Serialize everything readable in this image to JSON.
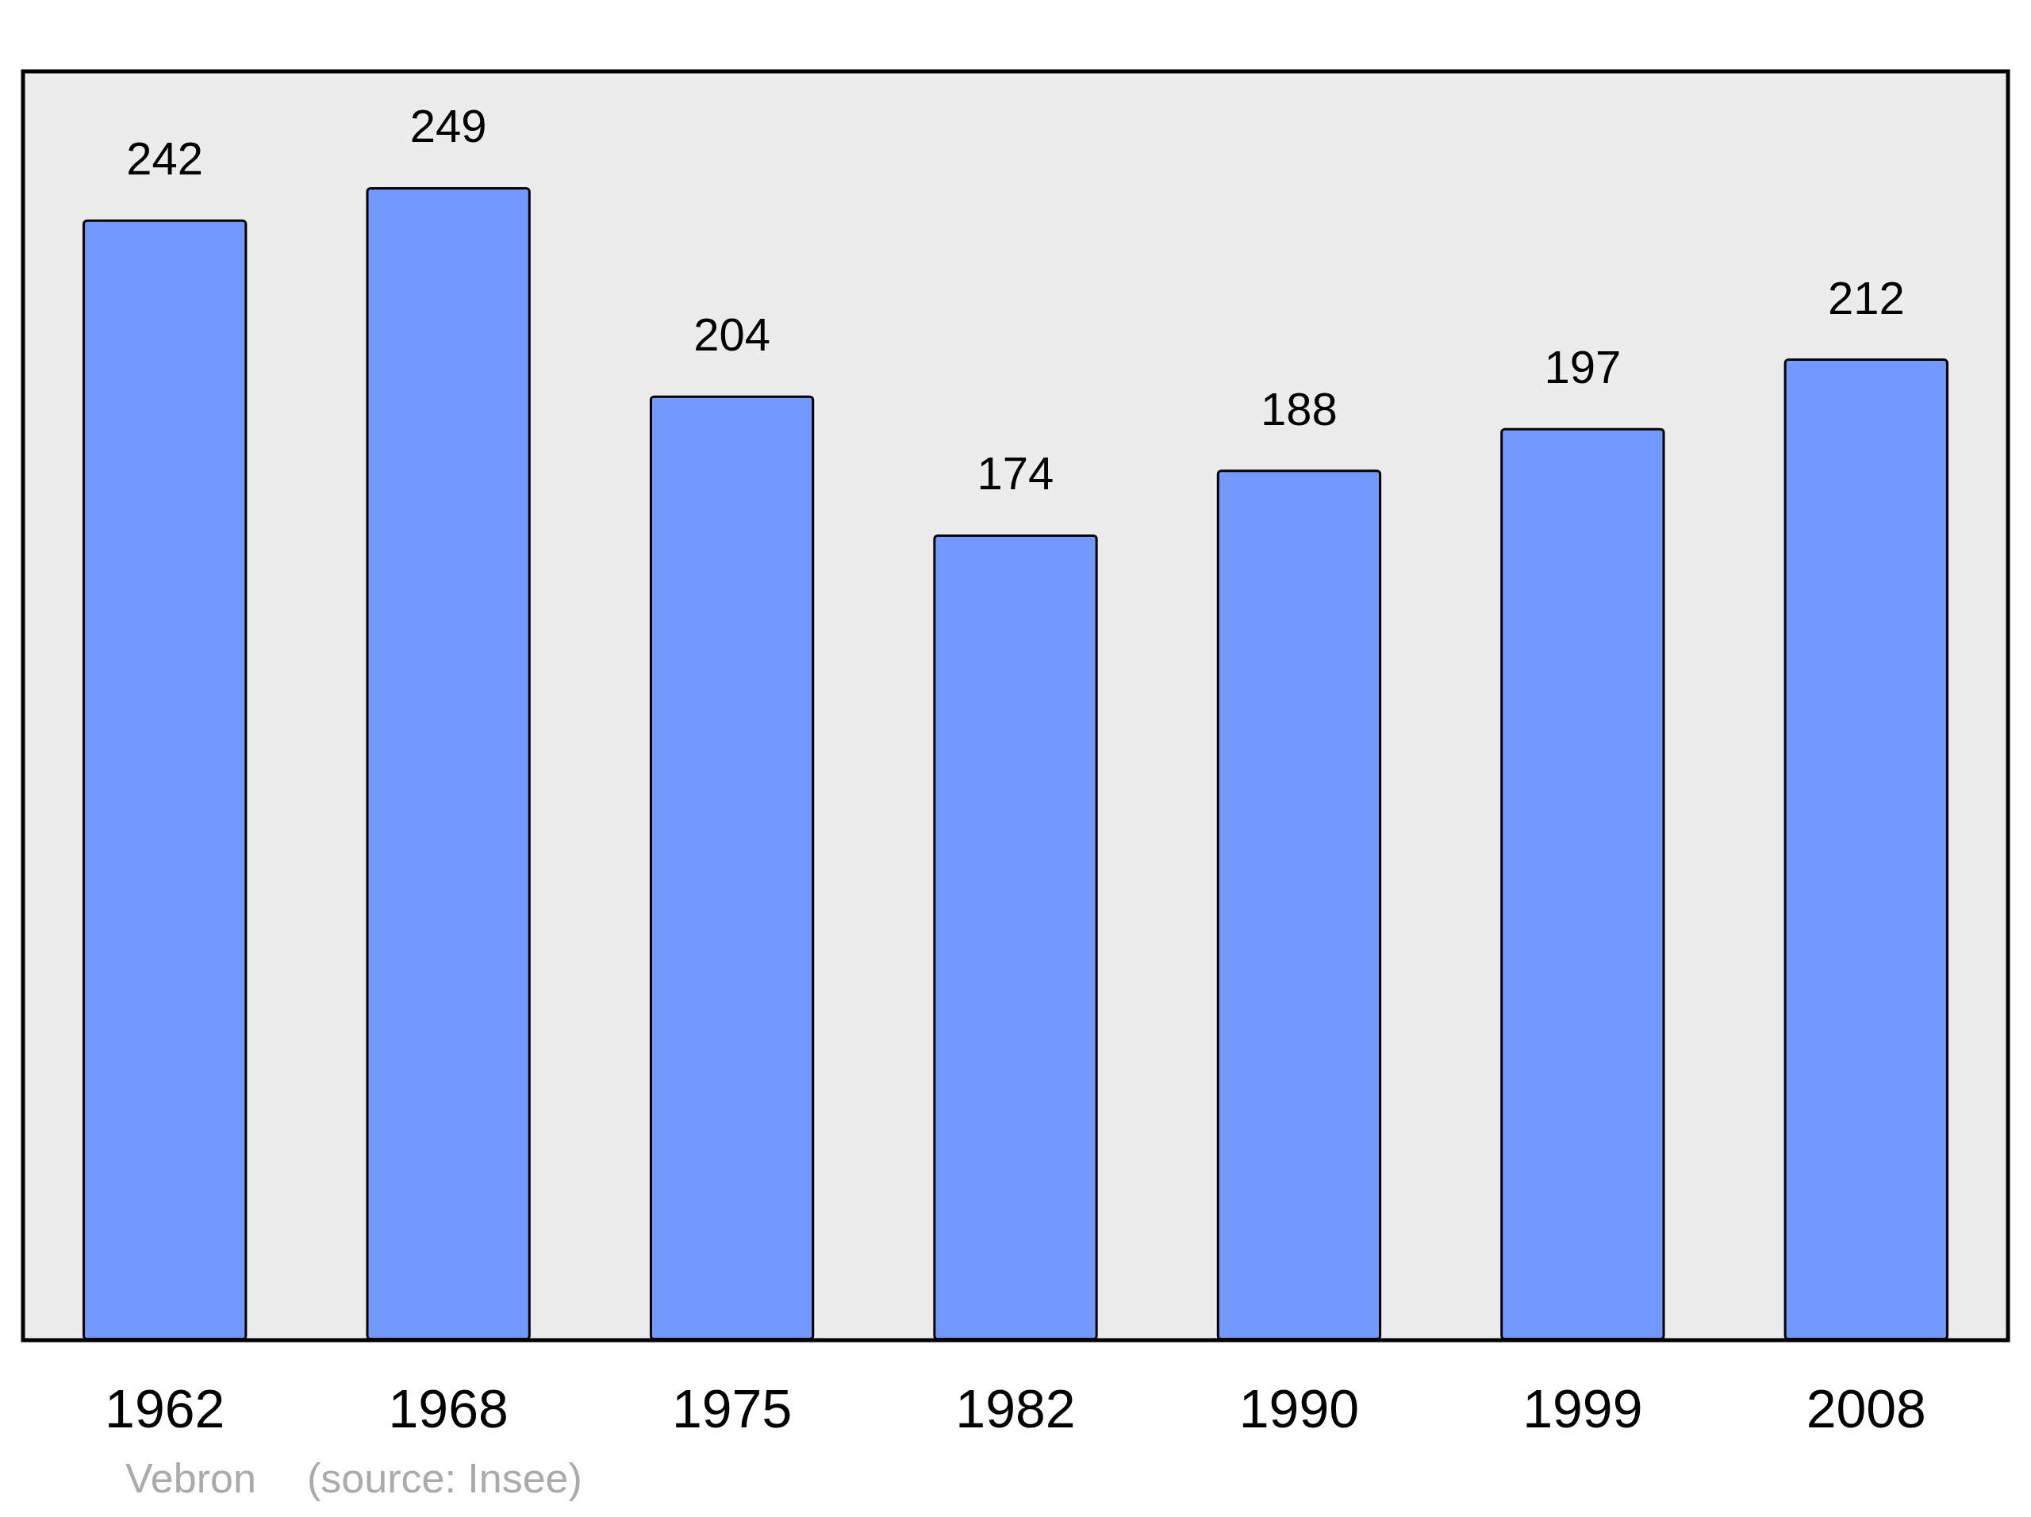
{
  "chart_data": {
    "type": "bar",
    "categories": [
      "1962",
      "1968",
      "1975",
      "1982",
      "1990",
      "1999",
      "2008"
    ],
    "values": [
      242,
      249,
      204,
      174,
      188,
      197,
      212
    ],
    "color": "#7299ff",
    "ylim": [
      0,
      274
    ],
    "tick_labels": "x",
    "data_labels": true,
    "grid": false,
    "annotations": [
      "Vebron",
      "(source: Insee)"
    ]
  }
}
